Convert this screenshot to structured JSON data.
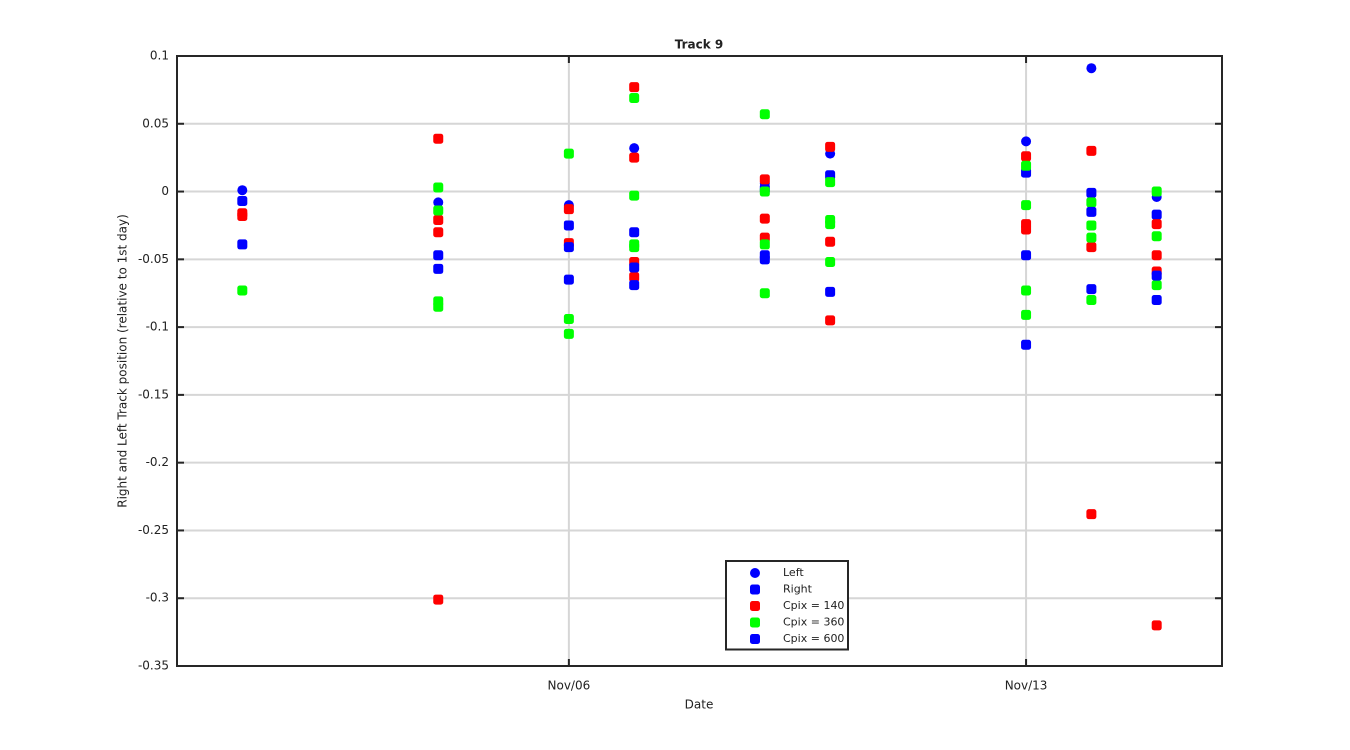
{
  "chart_data": {
    "type": "scatter",
    "title": "Track 9",
    "xlabel": "Date",
    "ylabel": "Right and Left Track position (relative to 1st day)",
    "xlim": [
      "Oct/31",
      "Nov/16"
    ],
    "xticks": [
      "Nov/06",
      "Nov/13"
    ],
    "ylim": [
      -0.35,
      0.1
    ],
    "yticks": [
      0.1,
      0.05,
      0,
      -0.05,
      -0.1,
      -0.15,
      -0.2,
      -0.25,
      -0.3,
      -0.35
    ],
    "grid": true,
    "legend": "bottom",
    "series": [
      {
        "name": "Left",
        "color": "#0000ff",
        "marker": "circle",
        "x": [
          "Nov/01",
          "Nov/04",
          "Nov/06",
          "Nov/07",
          "Nov/09",
          "Nov/10",
          "Nov/13",
          "Nov/14",
          "Nov/15"
        ],
        "values": [
          0.001,
          -0.008,
          -0.01,
          0.032,
          0.006,
          0.028,
          0.037,
          0.091,
          -0.004
        ]
      },
      {
        "name": "Right",
        "color": "#0000ff",
        "marker": "square",
        "x": [
          "Nov/01",
          "Nov/04",
          "Nov/06",
          "Nov/07",
          "Nov/09",
          "Nov/10",
          "Nov/13",
          "Nov/14",
          "Nov/15"
        ],
        "values": [
          -0.007,
          -0.047,
          -0.025,
          -0.03,
          0.002,
          0.012,
          0.014,
          -0.001,
          -0.017
        ]
      },
      {
        "name": "Cpix = 140",
        "color": "#ff0000",
        "marker": "square",
        "x": [
          "Nov/01",
          "Nov/01",
          "Nov/04",
          "Nov/04",
          "Nov/04",
          "Nov/04",
          "Nov/06",
          "Nov/06",
          "Nov/07",
          "Nov/07",
          "Nov/07",
          "Nov/07",
          "Nov/09",
          "Nov/09",
          "Nov/09",
          "Nov/10",
          "Nov/10",
          "Nov/10",
          "Nov/13",
          "Nov/13",
          "Nov/13",
          "Nov/14",
          "Nov/14",
          "Nov/14",
          "Nov/15",
          "Nov/15",
          "Nov/15",
          "Nov/15"
        ],
        "values": [
          -0.016,
          -0.018,
          0.039,
          -0.021,
          -0.03,
          -0.301,
          -0.013,
          -0.038,
          0.077,
          0.025,
          -0.052,
          -0.063,
          0.009,
          -0.02,
          -0.034,
          0.033,
          -0.037,
          -0.095,
          0.026,
          -0.024,
          -0.028,
          0.03,
          -0.041,
          -0.238,
          -0.024,
          -0.047,
          -0.059,
          -0.32
        ]
      },
      {
        "name": "Cpix = 360",
        "color": "#00ff00",
        "marker": "square",
        "x": [
          "Nov/01",
          "Nov/04",
          "Nov/04",
          "Nov/04",
          "Nov/04",
          "Nov/06",
          "Nov/06",
          "Nov/06",
          "Nov/07",
          "Nov/07",
          "Nov/07",
          "Nov/07",
          "Nov/09",
          "Nov/09",
          "Nov/09",
          "Nov/09",
          "Nov/10",
          "Nov/10",
          "Nov/10",
          "Nov/10",
          "Nov/13",
          "Nov/13",
          "Nov/13",
          "Nov/13",
          "Nov/14",
          "Nov/14",
          "Nov/14",
          "Nov/14",
          "Nov/15",
          "Nov/15",
          "Nov/15"
        ],
        "values": [
          -0.073,
          0.003,
          -0.014,
          -0.081,
          -0.085,
          0.028,
          -0.094,
          -0.105,
          0.069,
          -0.003,
          -0.039,
          -0.041,
          0.057,
          0,
          -0.039,
          -0.075,
          0.007,
          -0.021,
          -0.024,
          -0.052,
          0.019,
          -0.01,
          -0.073,
          -0.091,
          -0.008,
          -0.025,
          -0.034,
          -0.08,
          0,
          -0.033,
          -0.069
        ]
      },
      {
        "name": "Cpix = 600",
        "color": "#0000ff",
        "marker": "square",
        "x": [
          "Nov/01",
          "Nov/04",
          "Nov/06",
          "Nov/06",
          "Nov/07",
          "Nov/07",
          "Nov/09",
          "Nov/09",
          "Nov/10",
          "Nov/13",
          "Nov/13",
          "Nov/14",
          "Nov/14",
          "Nov/15",
          "Nov/15"
        ],
        "values": [
          -0.039,
          -0.057,
          -0.041,
          -0.065,
          -0.056,
          -0.069,
          -0.047,
          -0.05,
          -0.074,
          -0.047,
          -0.113,
          -0.015,
          -0.072,
          -0.062,
          -0.08
        ]
      }
    ]
  }
}
